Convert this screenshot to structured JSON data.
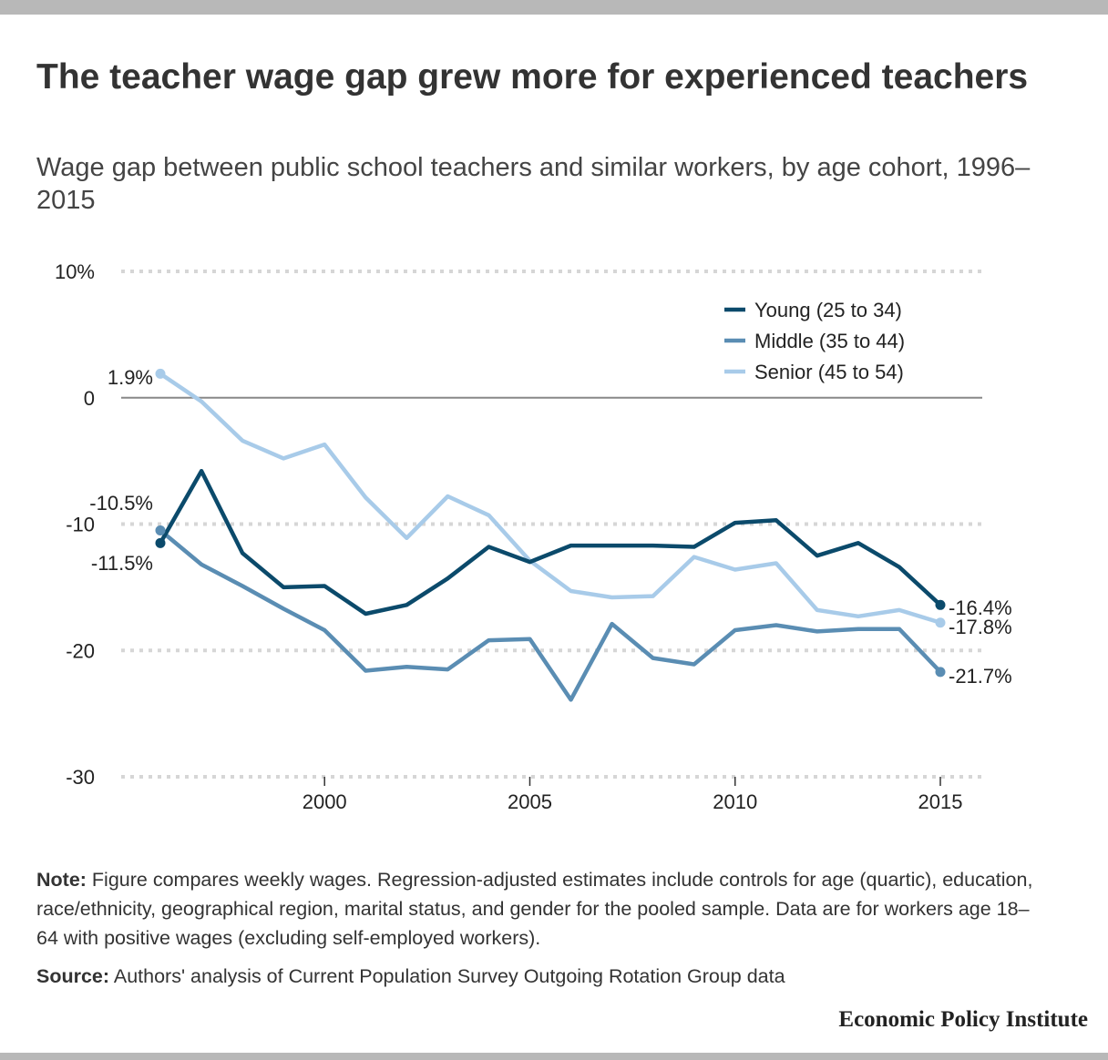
{
  "header": {
    "title": "The teacher wage gap grew more for experienced teachers",
    "subtitle": "Wage gap between public school teachers and similar workers, by age cohort, 1996–2015"
  },
  "chart_data": {
    "type": "line",
    "title": "The teacher wage gap grew more for experienced teachers",
    "subtitle": "Wage gap between public school teachers and similar workers, by age cohort, 1996–2015",
    "xlabel": "",
    "ylabel": "",
    "x": [
      1996,
      1997,
      1998,
      1999,
      2000,
      2001,
      2002,
      2003,
      2004,
      2005,
      2006,
      2007,
      2008,
      2009,
      2010,
      2011,
      2012,
      2013,
      2014,
      2015
    ],
    "xlim": [
      1996,
      2016
    ],
    "ylim": [
      -30,
      10
    ],
    "x_ticks": [
      2000,
      2005,
      2010,
      2015
    ],
    "x_tick_labels": [
      "2000",
      "2005",
      "2010",
      "2015"
    ],
    "y_ticks": [
      10,
      0,
      -10,
      -20,
      -30
    ],
    "y_tick_labels": [
      "10%",
      "0",
      "-10",
      "-20",
      "-30"
    ],
    "grid": "dotted horizontal",
    "legend_position": "top-right",
    "series": [
      {
        "name": "Young (25 to 34)",
        "color": "#0b4a6b",
        "values": [
          -11.5,
          -5.8,
          -12.3,
          -15.0,
          -14.9,
          -17.1,
          -16.4,
          -14.3,
          -11.8,
          -13.0,
          -11.7,
          -11.7,
          -11.7,
          -11.8,
          -9.9,
          -9.7,
          -12.5,
          -11.5,
          -13.4,
          -16.4
        ],
        "end_label": "-16.4%",
        "start_label": "-11.5%"
      },
      {
        "name": "Middle (35 to 44)",
        "color": "#5a8db3",
        "values": [
          -10.5,
          -13.2,
          -14.9,
          -16.7,
          -18.4,
          -21.6,
          -21.3,
          -21.5,
          -19.2,
          -19.1,
          -23.9,
          -17.9,
          -20.6,
          -21.1,
          -18.4,
          -18.0,
          -18.5,
          -18.3,
          -18.3,
          -21.7
        ],
        "end_label": "-21.7%",
        "start_label": "-10.5%"
      },
      {
        "name": "Senior (45 to 54)",
        "color": "#a8cbe9",
        "values": [
          1.9,
          -0.3,
          -3.4,
          -4.8,
          -3.7,
          -7.9,
          -11.1,
          -7.8,
          -9.3,
          -12.9,
          -15.3,
          -15.8,
          -15.7,
          -12.6,
          -13.6,
          -13.1,
          -16.8,
          -17.3,
          -16.8,
          -17.8
        ],
        "end_label": "-17.8%",
        "start_label": "1.9%"
      }
    ]
  },
  "footer": {
    "note_label": "Note:",
    "note_text": " Figure compares weekly wages. Regression-adjusted estimates include controls for age (quartic), education, race/ethnicity, geographical region, marital status, and gender for the pooled sample. Data are for workers age 18–64 with positive wages (excluding self-employed workers).",
    "source_label": "Source:",
    "source_text": " Authors' analysis of Current Population Survey Outgoing Rotation Group data",
    "brand": "Economic Policy Institute"
  }
}
